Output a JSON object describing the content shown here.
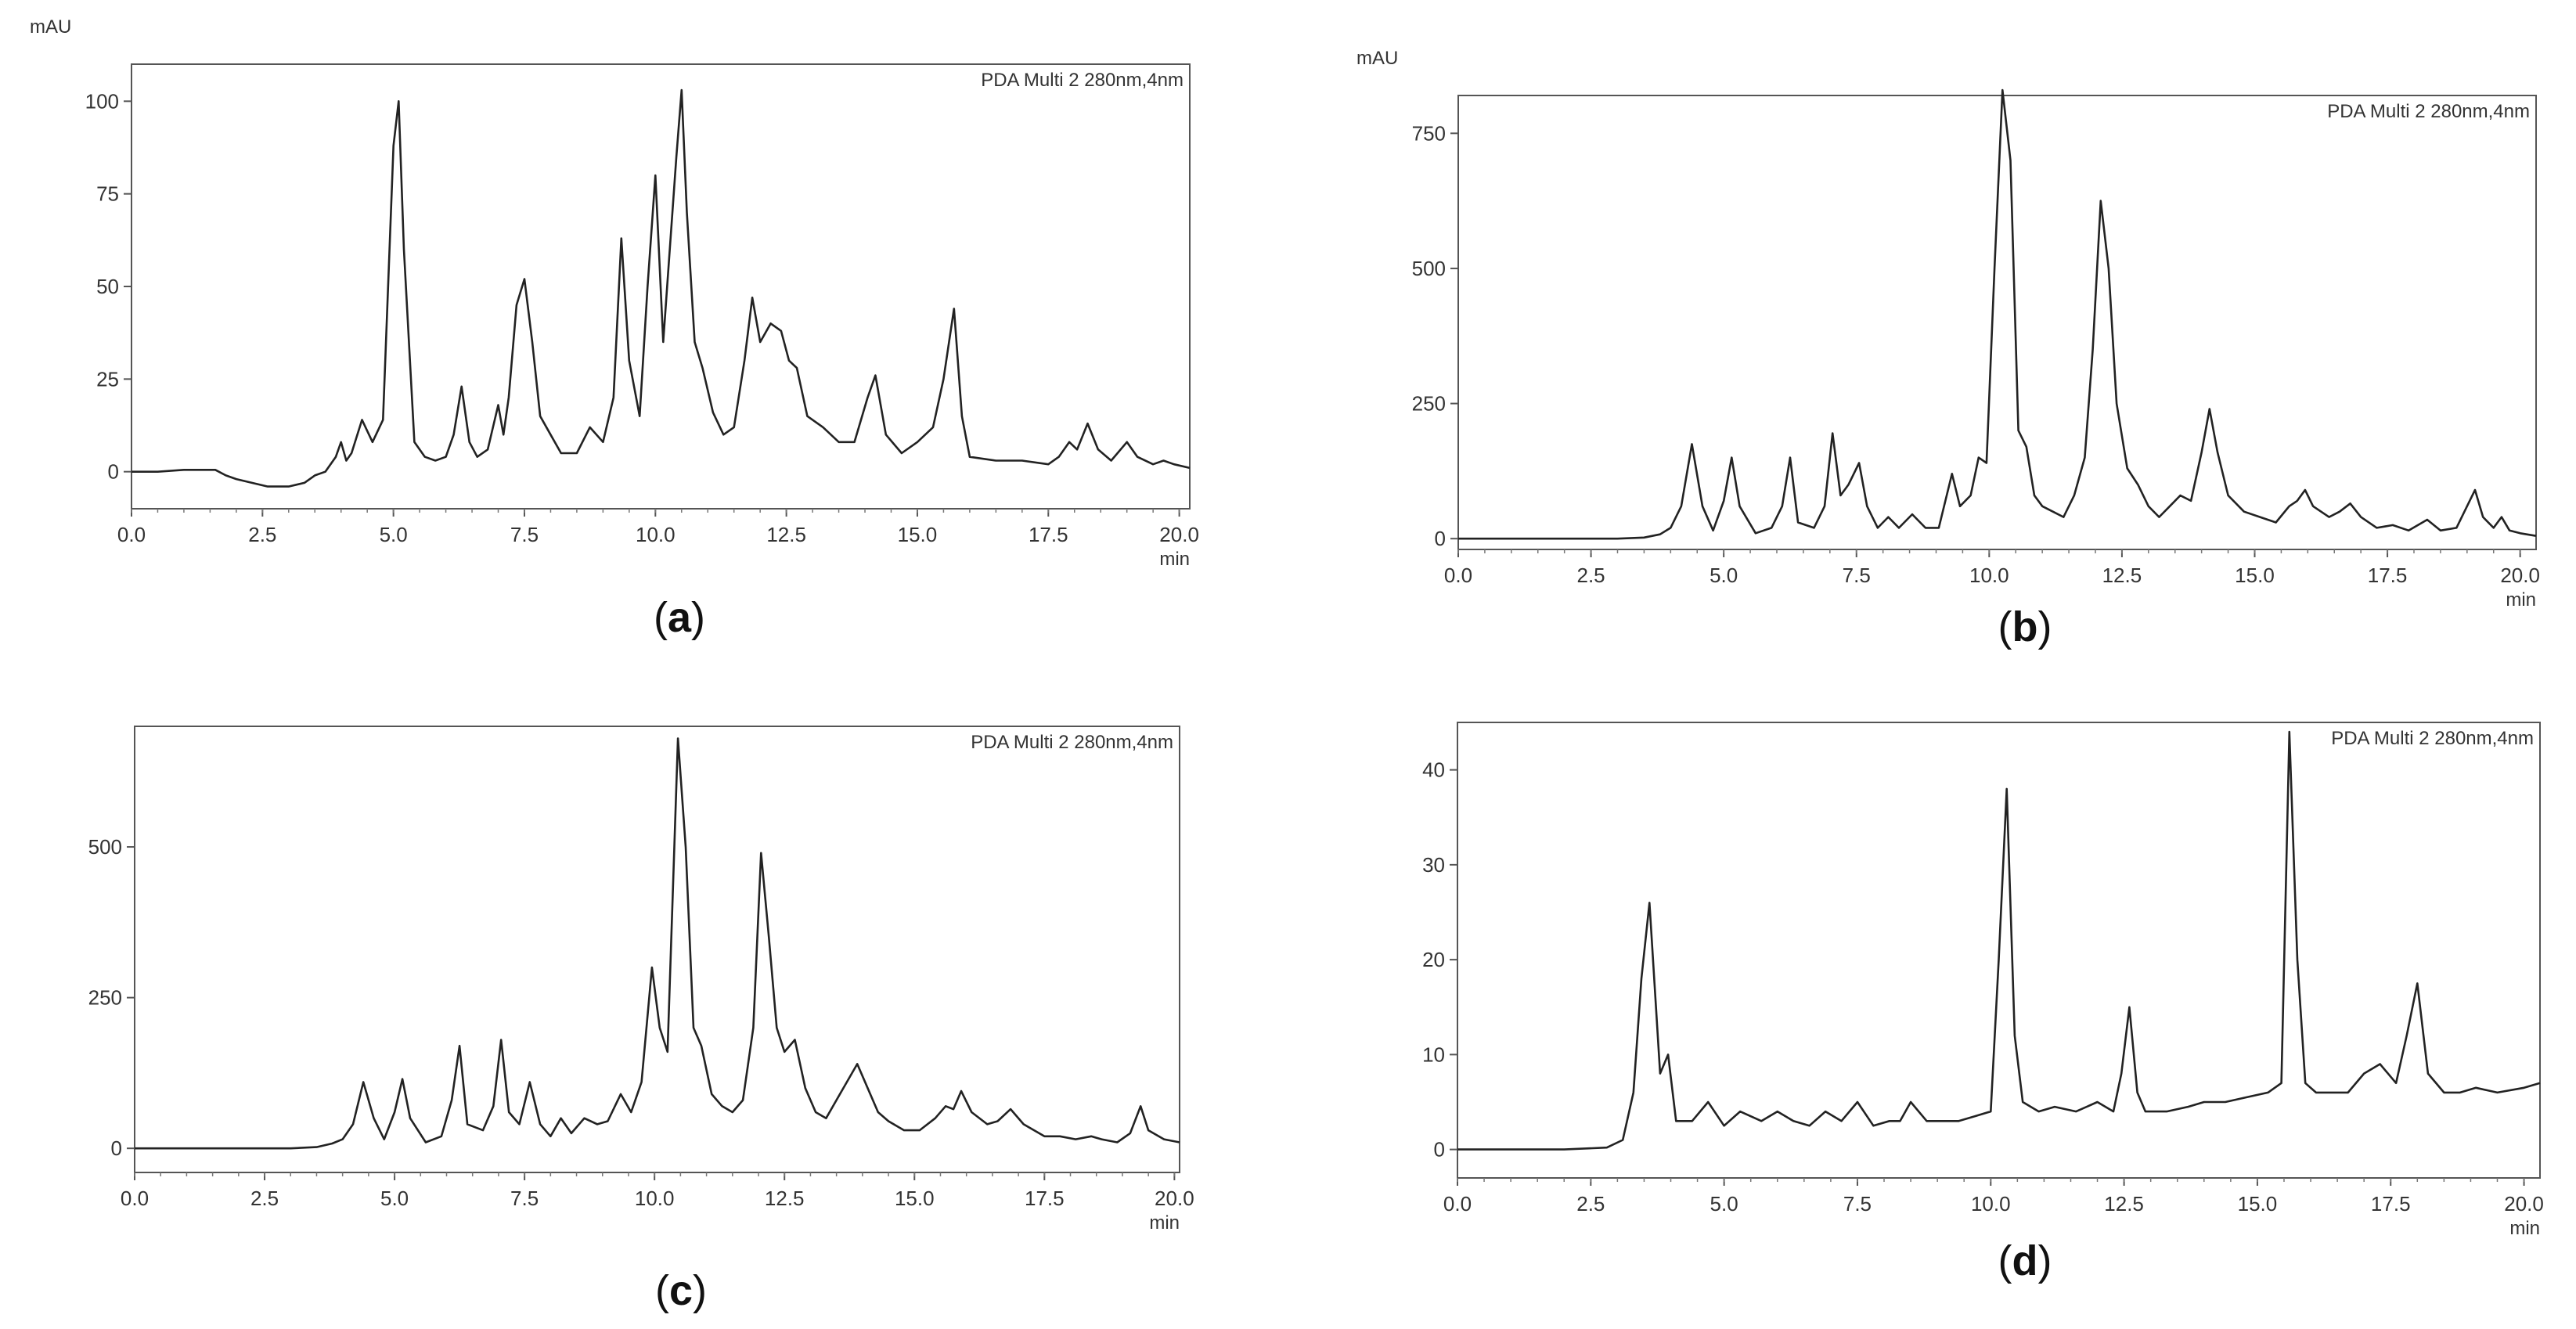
{
  "chart_data": [
    {
      "id": "a",
      "type": "line",
      "panel_label": "(a)",
      "legend": "PDA Multi 2 280nm,4nm",
      "ylabel": "mAU",
      "xlabel": "min",
      "xlim": [
        0,
        20.2
      ],
      "ylim": [
        -10,
        110
      ],
      "xticks": [
        0.0,
        2.5,
        5.0,
        7.5,
        10.0,
        12.5,
        15.0,
        17.5,
        20.0
      ],
      "yticks": [
        0,
        25,
        50,
        75,
        100
      ],
      "x": [
        0.0,
        0.5,
        1.0,
        1.6,
        1.8,
        2.0,
        2.3,
        2.6,
        3.0,
        3.3,
        3.5,
        3.7,
        3.9,
        4.0,
        4.1,
        4.2,
        4.4,
        4.6,
        4.8,
        5.0,
        5.1,
        5.2,
        5.4,
        5.6,
        5.8,
        6.0,
        6.15,
        6.3,
        6.45,
        6.6,
        6.8,
        7.0,
        7.1,
        7.2,
        7.35,
        7.5,
        7.65,
        7.8,
        8.0,
        8.2,
        8.5,
        8.75,
        9.0,
        9.2,
        9.35,
        9.5,
        9.7,
        9.85,
        10.0,
        10.15,
        10.25,
        10.4,
        10.5,
        10.6,
        10.75,
        10.9,
        11.1,
        11.3,
        11.5,
        11.7,
        11.85,
        12.0,
        12.2,
        12.4,
        12.55,
        12.7,
        12.9,
        13.2,
        13.5,
        13.8,
        14.05,
        14.2,
        14.4,
        14.7,
        15.0,
        15.3,
        15.5,
        15.7,
        15.85,
        16.0,
        16.5,
        17.0,
        17.5,
        17.7,
        17.9,
        18.05,
        18.25,
        18.45,
        18.7,
        19.0,
        19.2,
        19.5,
        19.7,
        19.9,
        20.2
      ],
      "y": [
        0,
        0,
        0.5,
        0.5,
        -1,
        -2,
        -3,
        -4,
        -4,
        -3,
        -1,
        0,
        4,
        8,
        3,
        5,
        14,
        8,
        14,
        88,
        100,
        60,
        8,
        4,
        3,
        4,
        10,
        23,
        8,
        4,
        6,
        18,
        10,
        20,
        45,
        52,
        35,
        15,
        10,
        5,
        5,
        12,
        8,
        20,
        63,
        30,
        15,
        50,
        80,
        35,
        55,
        85,
        103,
        70,
        35,
        28,
        16,
        10,
        12,
        30,
        47,
        35,
        40,
        38,
        30,
        28,
        15,
        12,
        8,
        8,
        20,
        26,
        10,
        5,
        8,
        12,
        25,
        44,
        15,
        4,
        3,
        3,
        2,
        4,
        8,
        6,
        13,
        6,
        3,
        8,
        4,
        2,
        3,
        2,
        1
      ]
    },
    {
      "id": "b",
      "type": "line",
      "panel_label": "(b)",
      "legend": "PDA Multi 2 280nm,4nm",
      "ylabel": "mAU",
      "xlabel": "min",
      "xlim": [
        0,
        20.3
      ],
      "ylim": [
        -20,
        820
      ],
      "xticks": [
        0.0,
        2.5,
        5.0,
        7.5,
        10.0,
        12.5,
        15.0,
        17.5,
        20.0
      ],
      "yticks": [
        0,
        250,
        500,
        750
      ],
      "x": [
        0.0,
        1.0,
        2.0,
        3.0,
        3.5,
        3.8,
        4.0,
        4.2,
        4.4,
        4.6,
        4.8,
        5.0,
        5.15,
        5.3,
        5.6,
        5.9,
        6.1,
        6.25,
        6.4,
        6.7,
        6.9,
        7.05,
        7.2,
        7.35,
        7.55,
        7.7,
        7.9,
        8.1,
        8.3,
        8.55,
        8.8,
        9.05,
        9.3,
        9.45,
        9.65,
        9.8,
        9.95,
        10.1,
        10.25,
        10.4,
        10.55,
        10.7,
        10.85,
        11.0,
        11.2,
        11.4,
        11.6,
        11.8,
        11.95,
        12.1,
        12.25,
        12.4,
        12.6,
        12.8,
        13.0,
        13.2,
        13.4,
        13.6,
        13.8,
        14.0,
        14.15,
        14.3,
        14.5,
        14.8,
        15.1,
        15.4,
        15.65,
        15.8,
        15.95,
        16.1,
        16.4,
        16.6,
        16.8,
        17.0,
        17.3,
        17.6,
        17.9,
        18.25,
        18.5,
        18.8,
        19.0,
        19.15,
        19.3,
        19.5,
        19.65,
        19.8,
        20.0,
        20.3
      ],
      "y": [
        0,
        0,
        0,
        0,
        2,
        8,
        20,
        60,
        175,
        60,
        15,
        70,
        150,
        60,
        10,
        20,
        60,
        150,
        30,
        20,
        60,
        195,
        80,
        100,
        140,
        60,
        20,
        40,
        20,
        45,
        20,
        20,
        120,
        60,
        80,
        150,
        140,
        500,
        830,
        700,
        200,
        170,
        80,
        60,
        50,
        40,
        80,
        150,
        350,
        625,
        500,
        250,
        130,
        100,
        60,
        40,
        60,
        80,
        70,
        160,
        240,
        160,
        80,
        50,
        40,
        30,
        60,
        70,
        90,
        60,
        40,
        50,
        65,
        40,
        20,
        25,
        15,
        35,
        15,
        20,
        60,
        90,
        40,
        20,
        40,
        15,
        10,
        5
      ]
    },
    {
      "id": "c",
      "type": "line",
      "panel_label": "(c)",
      "legend": "PDA Multi 2 280nm,4nm",
      "ylabel": "",
      "xlabel": "min",
      "xlim": [
        0,
        20.1
      ],
      "ylim": [
        -40,
        700
      ],
      "xticks": [
        0.0,
        2.5,
        5.0,
        7.5,
        10.0,
        12.5,
        15.0,
        17.5,
        20.0
      ],
      "yticks": [
        0,
        250,
        500
      ],
      "x": [
        0.0,
        1.0,
        2.0,
        3.0,
        3.5,
        3.8,
        4.0,
        4.2,
        4.4,
        4.6,
        4.8,
        5.0,
        5.15,
        5.3,
        5.6,
        5.9,
        6.1,
        6.25,
        6.4,
        6.7,
        6.9,
        7.05,
        7.2,
        7.4,
        7.6,
        7.8,
        8.0,
        8.2,
        8.4,
        8.65,
        8.9,
        9.1,
        9.35,
        9.55,
        9.75,
        9.95,
        10.1,
        10.25,
        10.45,
        10.6,
        10.75,
        10.9,
        11.1,
        11.3,
        11.5,
        11.7,
        11.9,
        12.05,
        12.2,
        12.35,
        12.5,
        12.7,
        12.9,
        13.1,
        13.3,
        13.5,
        13.7,
        13.9,
        14.1,
        14.3,
        14.5,
        14.8,
        15.1,
        15.4,
        15.6,
        15.75,
        15.9,
        16.1,
        16.4,
        16.6,
        16.85,
        17.1,
        17.5,
        17.8,
        18.1,
        18.4,
        18.6,
        18.9,
        19.15,
        19.35,
        19.5,
        19.8,
        20.1
      ],
      "y": [
        0,
        0,
        0,
        0,
        2,
        8,
        15,
        40,
        110,
        50,
        15,
        60,
        115,
        50,
        10,
        20,
        80,
        170,
        40,
        30,
        70,
        180,
        60,
        40,
        110,
        40,
        20,
        50,
        25,
        50,
        40,
        45,
        90,
        60,
        110,
        300,
        200,
        160,
        680,
        500,
        200,
        170,
        90,
        70,
        60,
        80,
        200,
        490,
        350,
        200,
        160,
        180,
        100,
        60,
        50,
        80,
        110,
        140,
        100,
        60,
        45,
        30,
        30,
        50,
        70,
        65,
        95,
        60,
        40,
        45,
        65,
        40,
        20,
        20,
        15,
        20,
        15,
        10,
        25,
        70,
        30,
        15,
        10
      ]
    },
    {
      "id": "d",
      "type": "line",
      "panel_label": "(d)",
      "legend": "PDA Multi 2 280nm,4nm",
      "ylabel": "",
      "xlabel": "min",
      "xlim": [
        0,
        20.3
      ],
      "ylim": [
        -3,
        45
      ],
      "xticks": [
        0.0,
        2.5,
        5.0,
        7.5,
        10.0,
        12.5,
        15.0,
        17.5,
        20.0
      ],
      "yticks": [
        0,
        10,
        20,
        30,
        40
      ],
      "x": [
        0.0,
        1.0,
        2.0,
        2.8,
        3.1,
        3.3,
        3.45,
        3.6,
        3.8,
        3.95,
        4.1,
        4.4,
        4.7,
        5.0,
        5.3,
        5.7,
        6.0,
        6.3,
        6.6,
        6.9,
        7.2,
        7.5,
        7.8,
        8.1,
        8.3,
        8.5,
        8.8,
        9.1,
        9.4,
        9.7,
        10.0,
        10.15,
        10.3,
        10.45,
        10.6,
        10.9,
        11.2,
        11.6,
        12.0,
        12.3,
        12.45,
        12.6,
        12.75,
        12.9,
        13.3,
        13.7,
        14.0,
        14.4,
        14.8,
        15.2,
        15.45,
        15.6,
        15.75,
        15.9,
        16.1,
        16.4,
        16.7,
        17.0,
        17.3,
        17.6,
        17.8,
        18.0,
        18.2,
        18.5,
        18.8,
        19.1,
        19.5,
        20.0,
        20.3
      ],
      "y": [
        0,
        0,
        0,
        0.2,
        1,
        6,
        18,
        26,
        8,
        10,
        3,
        3,
        5,
        2.5,
        4,
        3,
        4,
        3,
        2.5,
        4,
        3,
        5,
        2.5,
        3,
        3,
        5,
        3,
        3,
        3,
        3.5,
        4,
        20,
        38,
        12,
        5,
        4,
        4.5,
        4,
        5,
        4,
        8,
        15,
        6,
        4,
        4,
        4.5,
        5,
        5,
        5.5,
        6,
        7,
        44,
        20,
        7,
        6,
        6,
        6,
        8,
        9,
        7,
        12,
        17.5,
        8,
        6,
        6,
        6.5,
        6,
        6.5,
        7
      ]
    }
  ]
}
